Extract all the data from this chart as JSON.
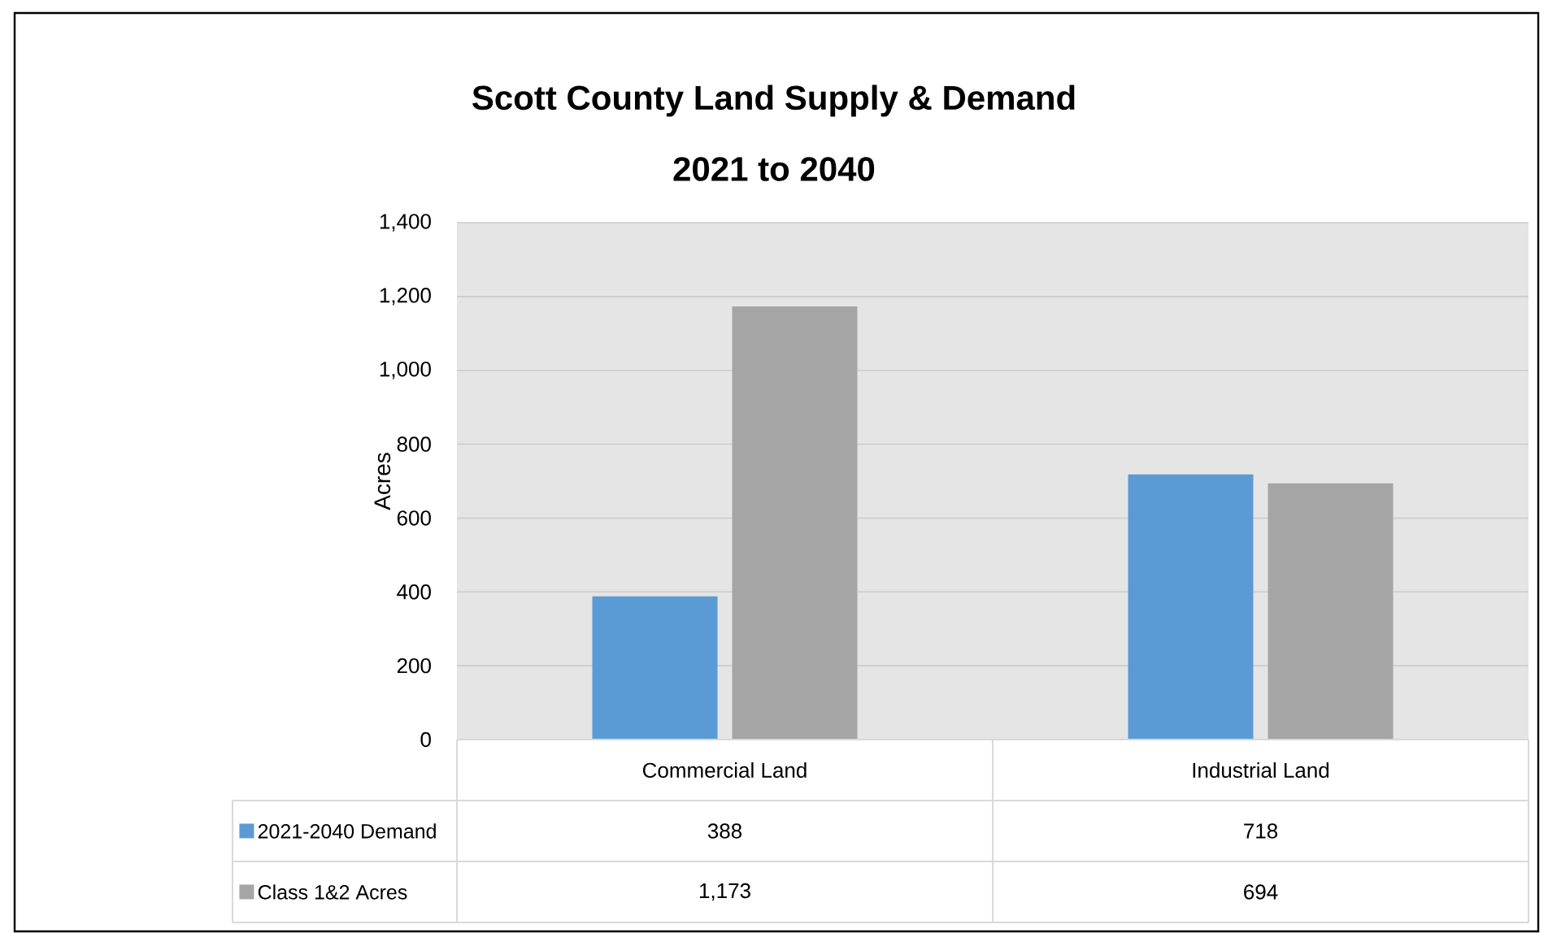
{
  "chart_data": {
    "type": "bar",
    "title": "Scott County Land Supply & Demand",
    "subtitle": "2021 to 2040",
    "ylabel": "Acres",
    "categories": [
      "Commercial Land",
      "Industrial Land"
    ],
    "series": [
      {
        "name": "2021-2040 Demand",
        "color": "#5b9bd5",
        "values": [
          388,
          718
        ],
        "value_labels": [
          "388",
          "718"
        ]
      },
      {
        "name": "Class 1&2 Acres",
        "color": "#a5a5a5",
        "values": [
          1173,
          694
        ],
        "value_labels": [
          "1,173",
          "694"
        ]
      }
    ],
    "ylim": [
      0,
      1400
    ],
    "yticks": [
      0,
      200,
      400,
      600,
      800,
      {
        "value": 1000,
        "label": "1,000"
      },
      {
        "value": 1200,
        "label": "1,200"
      },
      {
        "value": 1400,
        "label": "1,400"
      }
    ],
    "grid": "y",
    "legend": "bottom"
  }
}
